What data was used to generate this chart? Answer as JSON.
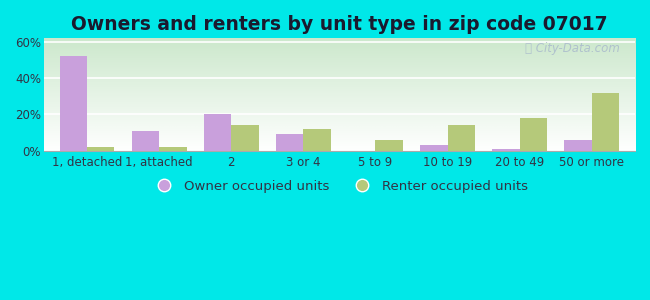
{
  "categories": [
    "1, detached",
    "1, attached",
    "2",
    "3 or 4",
    "5 to 9",
    "10 to 19",
    "20 to 49",
    "50 or more"
  ],
  "owner_values": [
    52,
    11,
    20,
    9,
    0,
    3,
    1,
    6
  ],
  "renter_values": [
    2,
    2,
    14,
    12,
    6,
    14,
    18,
    32
  ],
  "owner_color": "#c9a0dc",
  "renter_color": "#b5c97a",
  "title": "Owners and renters by unit type in zip code 07017",
  "owner_label": "Owner occupied units",
  "renter_label": "Renter occupied units",
  "ylim": [
    0,
    62
  ],
  "yticks": [
    0,
    20,
    40,
    60
  ],
  "ytick_labels": [
    "0%",
    "20%",
    "40%",
    "60%"
  ],
  "background_color": "#00e8e8",
  "plot_bg_top_left": "#c8e6c8",
  "plot_bg_bottom_right": "#ffffff",
  "bar_width": 0.38,
  "title_fontsize": 13.5,
  "legend_fontsize": 9.5,
  "tick_fontsize": 8.5,
  "title_color": "#1a1a2e",
  "tick_color": "#333344",
  "watermark_color": "#aabbcc"
}
